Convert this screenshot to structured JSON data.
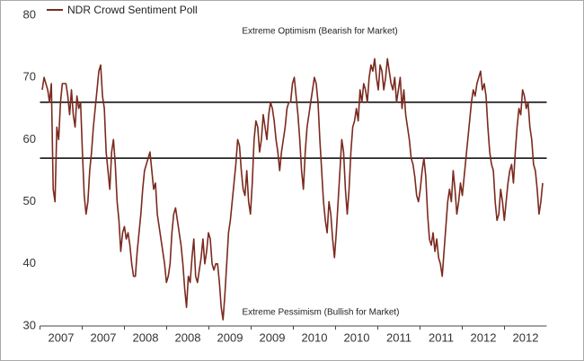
{
  "chart_data": {
    "type": "line",
    "x_labels": [
      "2007",
      "2007",
      "2008",
      "2008",
      "2009",
      "2009",
      "2010",
      "2010",
      "2011",
      "2011",
      "2012",
      "2012"
    ],
    "series": [
      {
        "name": "NDR Crowd Sentiment Poll",
        "color": "#7b2a1e",
        "values": [
          68,
          70,
          69,
          68,
          66,
          69,
          52,
          50,
          62,
          60,
          66,
          69,
          69,
          69,
          67,
          64,
          68,
          64,
          62,
          67,
          65,
          66,
          58,
          51,
          48,
          50,
          55,
          58,
          62,
          65,
          68,
          71,
          72,
          67,
          65,
          58,
          55,
          52,
          58,
          60,
          56,
          50,
          47,
          42,
          45,
          46,
          44,
          45,
          43,
          40,
          38,
          38,
          42,
          45,
          48,
          52,
          55,
          56,
          57,
          58,
          55,
          52,
          53,
          48,
          46,
          44,
          42,
          40,
          37,
          38,
          40,
          45,
          48,
          49,
          47,
          45,
          43,
          40,
          36,
          33,
          38,
          37,
          41,
          44,
          38,
          37,
          39,
          41,
          44,
          40,
          42,
          45,
          44,
          40,
          39,
          40,
          40,
          37,
          33,
          31,
          35,
          40,
          45,
          47,
          50,
          53,
          56,
          60,
          59,
          55,
          52,
          51,
          55,
          50,
          48,
          53,
          60,
          63,
          62,
          58,
          60,
          64,
          62,
          60,
          64,
          66,
          65,
          63,
          60,
          58,
          55,
          58,
          60,
          62,
          65,
          66,
          66,
          69,
          70,
          67,
          64,
          60,
          55,
          52,
          58,
          62,
          64,
          66,
          68,
          70,
          69,
          66,
          60,
          55,
          50,
          47,
          45,
          50,
          48,
          44,
          41,
          45,
          50,
          55,
          60,
          58,
          52,
          48,
          52,
          58,
          62,
          63,
          65,
          63,
          68,
          66,
          69,
          68,
          66,
          70,
          72,
          71,
          73,
          70,
          68,
          72,
          71,
          68,
          70,
          73,
          71,
          69,
          68,
          70,
          66,
          68,
          70,
          65,
          68,
          64,
          62,
          60,
          57,
          56,
          54,
          51,
          50,
          52,
          55,
          57,
          54,
          48,
          44,
          43,
          45,
          42,
          44,
          41,
          40,
          38,
          42,
          46,
          50,
          52,
          50,
          55,
          52,
          48,
          50,
          53,
          51,
          54,
          57,
          60,
          63,
          66,
          68,
          67,
          69,
          70,
          71,
          68,
          69,
          67,
          62,
          58,
          56,
          55,
          50,
          47,
          48,
          52,
          50,
          47,
          50,
          53,
          55,
          56,
          53,
          58,
          62,
          65,
          64,
          68,
          67,
          65,
          66,
          62,
          60,
          56,
          55,
          52,
          48,
          50,
          53
        ]
      }
    ],
    "reference_lines": [
      66,
      57
    ],
    "annotations": [
      "Extreme Optimism (Bearish for Market)",
      "Extreme Pessimism (Bullish for Market)"
    ],
    "ylim": [
      30,
      80
    ],
    "yticks": [
      30,
      40,
      50,
      60,
      70,
      80
    ]
  }
}
